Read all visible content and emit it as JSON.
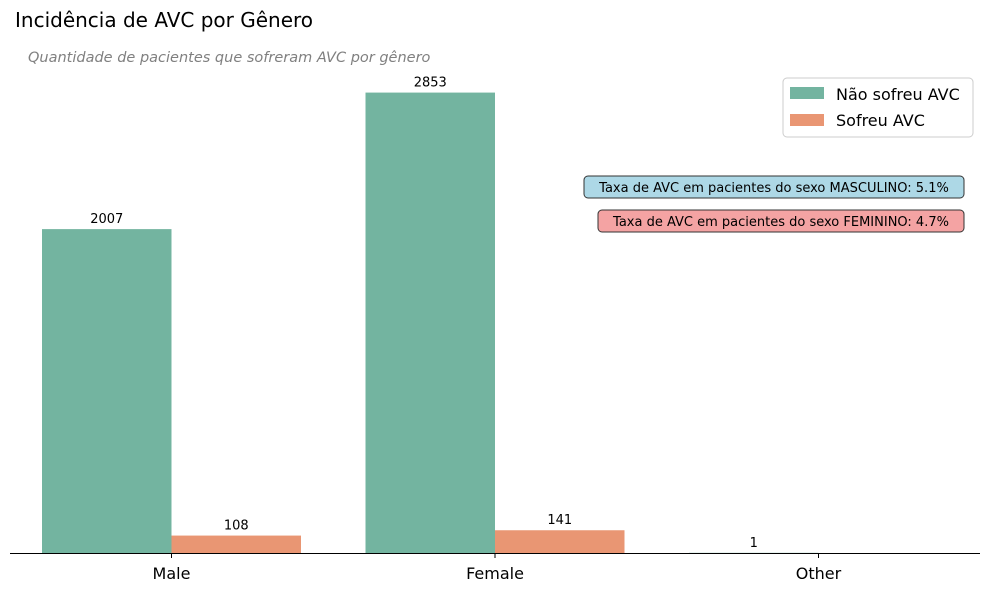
{
  "chart_data": {
    "type": "bar",
    "title": "Incidência de AVC por Gênero",
    "subtitle": "Quantidade de pacientes que sofreram AVC por gênero",
    "xlabel": "",
    "ylabel": "",
    "categories": [
      "Male",
      "Female",
      "Other"
    ],
    "series": [
      {
        "name": "Não sofreu AVC",
        "values": [
          2007,
          2853,
          1
        ],
        "color": "#73b4a0"
      },
      {
        "name": "Sofreu AVC",
        "values": [
          108,
          141,
          null
        ],
        "color": "#e99673"
      }
    ],
    "ylim": [
      0,
      3000
    ],
    "grid": false,
    "legend": "top-right",
    "annotations": [
      {
        "text": "Taxa de AVC em pacientes do sexo MASCULINO: 5.1%",
        "color": "#add8e6"
      },
      {
        "text": "Taxa de AVC em pacientes do sexo FEMININO: 4.7%",
        "color": "#f4a3a3"
      }
    ]
  }
}
